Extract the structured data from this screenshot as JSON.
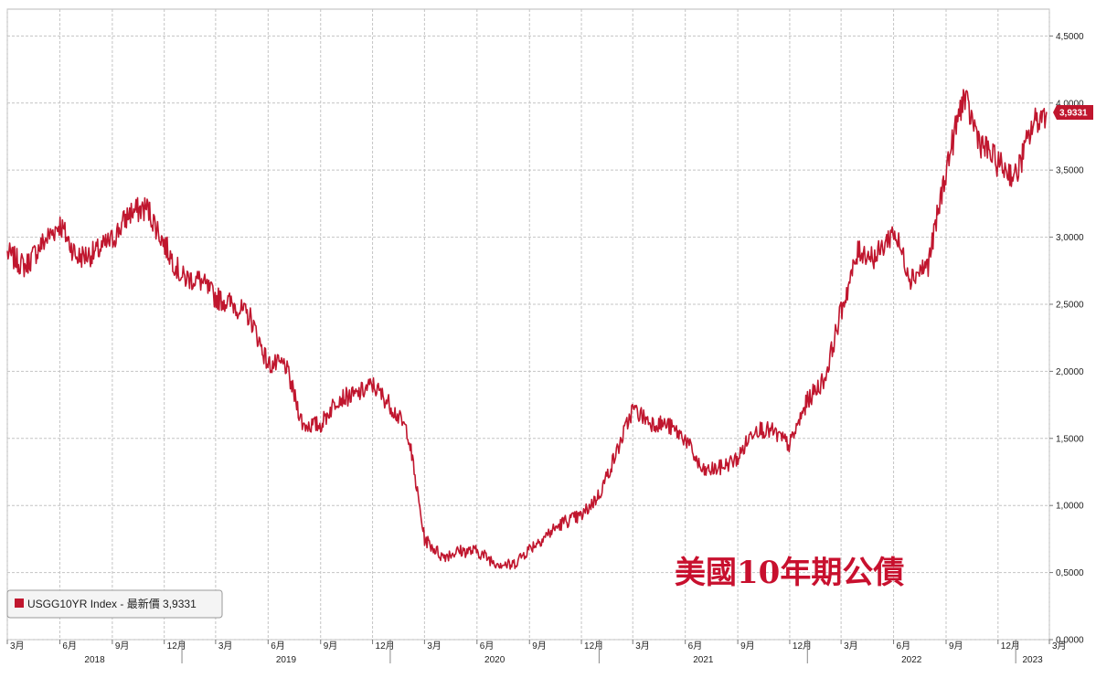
{
  "chart_data": {
    "type": "line",
    "title": "美國10年期公債",
    "legend": {
      "label": "USGG10YR Index - 最新價 3,9331",
      "position": "bottom-left"
    },
    "last_value_label": "3,9331",
    "series_color": "#c0162e",
    "grid": true,
    "y_axis": {
      "position": "right",
      "ylim": [
        0.0,
        4.7
      ],
      "ticks": [
        0.0,
        0.5,
        1.0,
        1.5,
        2.0,
        2.5,
        3.0,
        3.5,
        4.0,
        4.5
      ],
      "tick_labels": [
        "0,0000",
        "0,5000",
        "1,0000",
        "1,5000",
        "2,0000",
        "2,5000",
        "3,0000",
        "3,5000",
        "4,0000",
        "4,5000"
      ]
    },
    "x_axis": {
      "start": "2018-03-01",
      "end": "2023-03-01",
      "month_ticks": [
        "2018-03",
        "2018-06",
        "2018-09",
        "2018-12",
        "2019-03",
        "2019-06",
        "2019-09",
        "2019-12",
        "2020-03",
        "2020-06",
        "2020-09",
        "2020-12",
        "2021-03",
        "2021-06",
        "2021-09",
        "2021-12",
        "2022-03",
        "2022-06",
        "2022-09",
        "2022-12",
        "2023-03"
      ],
      "month_labels": [
        "3月",
        "6月",
        "9月",
        "12月",
        "3月",
        "6月",
        "9月",
        "12月",
        "3月",
        "6月",
        "9月",
        "12月",
        "3月",
        "6月",
        "9月",
        "12月",
        "3月",
        "6月",
        "9月",
        "12月",
        "3月"
      ],
      "years": [
        "2018",
        "2019",
        "2020",
        "2021",
        "2022",
        "2023"
      ]
    },
    "series": [
      {
        "x": [
          "2018-03-01",
          "2018-04-01",
          "2018-05-01",
          "2018-06-01",
          "2018-07-01",
          "2018-08-01",
          "2018-09-01",
          "2018-10-01",
          "2018-11-01",
          "2018-12-01",
          "2019-01-01",
          "2019-02-01",
          "2019-03-01",
          "2019-04-01",
          "2019-05-01",
          "2019-06-01",
          "2019-07-01",
          "2019-08-01",
          "2019-09-01",
          "2019-10-01",
          "2019-11-01",
          "2019-12-01",
          "2020-01-01",
          "2020-02-01",
          "2020-03-01",
          "2020-04-01",
          "2020-05-01",
          "2020-06-01",
          "2020-07-01",
          "2020-08-01",
          "2020-09-01",
          "2020-10-01",
          "2020-11-01",
          "2020-12-01",
          "2021-01-01",
          "2021-02-01",
          "2021-03-01",
          "2021-04-01",
          "2021-05-01",
          "2021-06-01",
          "2021-07-01",
          "2021-08-01",
          "2021-09-01",
          "2021-10-01",
          "2021-11-01",
          "2021-12-01",
          "2022-01-01",
          "2022-02-01",
          "2022-03-01",
          "2022-04-01",
          "2022-05-01",
          "2022-06-01",
          "2022-07-01",
          "2022-08-01",
          "2022-09-01",
          "2022-10-01",
          "2022-11-01",
          "2022-12-01",
          "2023-01-01",
          "2023-02-01",
          "2023-02-24"
        ],
        "values": [
          2.88,
          2.78,
          2.95,
          3.1,
          2.85,
          2.88,
          2.98,
          3.18,
          3.22,
          2.95,
          2.7,
          2.68,
          2.55,
          2.5,
          2.4,
          2.05,
          2.05,
          1.6,
          1.6,
          1.8,
          1.82,
          1.9,
          1.75,
          1.55,
          0.75,
          0.62,
          0.66,
          0.66,
          0.58,
          0.55,
          0.68,
          0.78,
          0.88,
          0.92,
          1.08,
          1.4,
          1.72,
          1.62,
          1.6,
          1.5,
          1.25,
          1.28,
          1.35,
          1.58,
          1.55,
          1.45,
          1.78,
          1.95,
          2.45,
          2.9,
          2.85,
          3.05,
          2.7,
          2.8,
          3.5,
          4.05,
          3.7,
          3.55,
          3.45,
          3.85,
          3.93
        ]
      }
    ]
  }
}
